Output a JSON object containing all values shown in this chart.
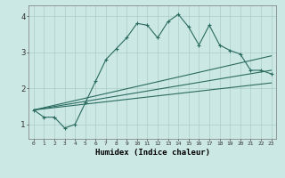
{
  "xlabel": "Humidex (Indice chaleur)",
  "bg_color": "#cce8e4",
  "grid_color": "#aaccc8",
  "line_color": "#2a6b60",
  "x_min": -0.5,
  "x_max": 23.5,
  "y_min": 0.6,
  "y_max": 4.3,
  "zigzag_x": [
    0,
    1,
    2,
    3,
    4,
    5,
    6,
    7,
    8,
    9,
    10,
    11,
    12,
    13,
    14,
    15,
    16,
    17,
    18,
    19,
    20,
    21,
    22,
    23
  ],
  "zigzag_y": [
    1.4,
    1.2,
    1.2,
    0.9,
    1.0,
    1.6,
    2.2,
    2.8,
    3.1,
    3.4,
    3.8,
    3.75,
    3.4,
    3.85,
    4.05,
    3.7,
    3.2,
    3.75,
    3.2,
    3.05,
    2.95,
    2.5,
    2.5,
    2.4
  ],
  "line1_x": [
    0,
    23
  ],
  "line1_y": [
    1.4,
    2.9
  ],
  "line2_x": [
    0,
    23
  ],
  "line2_y": [
    1.4,
    2.5
  ],
  "line3_x": [
    0,
    23
  ],
  "line3_y": [
    1.4,
    2.15
  ],
  "yticks": [
    1,
    2,
    3,
    4
  ],
  "xticks": [
    0,
    1,
    2,
    3,
    4,
    5,
    6,
    7,
    8,
    9,
    10,
    11,
    12,
    13,
    14,
    15,
    16,
    17,
    18,
    19,
    20,
    21,
    22,
    23
  ]
}
